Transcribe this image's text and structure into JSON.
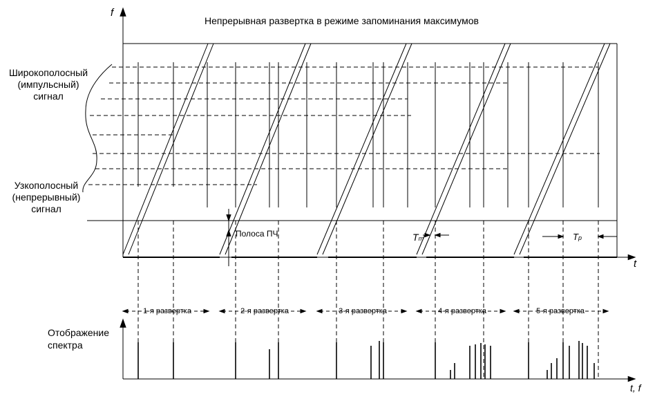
{
  "title": "Непрерывная развертка в режиме запоминания максимумов",
  "axes": {
    "freq_axis_label": "f",
    "time_axis_label": "t",
    "bottom_axis_label": "t, f",
    "display_axis_label_line1": "Отображение",
    "display_axis_label_line2": "спектра"
  },
  "signals": {
    "wideband_line1": "Широкополосный",
    "wideband_line2": "(импульсный)",
    "wideband_line3": "сигнал",
    "narrowband_line1": "Узкополосный",
    "narrowband_line2": "(непрерывный)",
    "narrowband_line3": "сигнал"
  },
  "annotations": {
    "if_band": "Полоса ПЧ",
    "tm_main": "T",
    "tm_sub": "m",
    "tp_main": "T",
    "tp_sub": "p"
  },
  "sweeps": [
    {
      "label": "1-я развертка"
    },
    {
      "label": "2-я развертка"
    },
    {
      "label": "3-я развертка"
    },
    {
      "label": "4-я развертка"
    },
    {
      "label": "5-я развертка"
    }
  ],
  "colors": {
    "ink": "#000000",
    "background": "#ffffff"
  }
}
